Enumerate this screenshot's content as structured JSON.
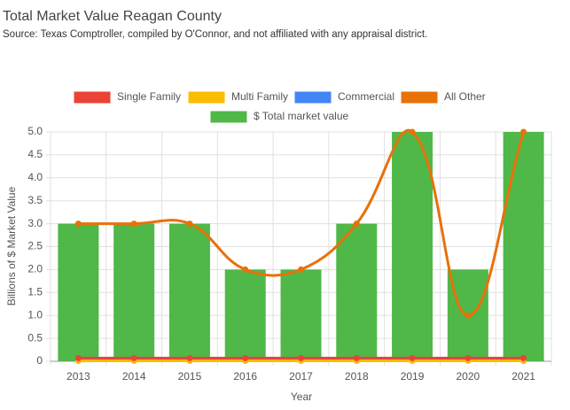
{
  "chart_data": {
    "type": "bar",
    "title": "Total Market Value Reagan County",
    "subtitle": "Source: Texas Comptroller, compiled by O'Connor, and not affiliated with any appraisal district.",
    "x_label": "Year",
    "y_label": "Billions of $ Market Value",
    "categories": [
      "2013",
      "2014",
      "2015",
      "2016",
      "2017",
      "2018",
      "2019",
      "2020",
      "2021"
    ],
    "series": [
      {
        "name": "Single Family",
        "color": "#ea4335",
        "type": "line",
        "values": [
          0.07,
          0.07,
          0.07,
          0.07,
          0.07,
          0.07,
          0.07,
          0.07,
          0.07
        ]
      },
      {
        "name": "Multi Family",
        "color": "#fbbc04",
        "type": "line",
        "values": [
          0.01,
          0.01,
          0.01,
          0.01,
          0.01,
          0.01,
          0.01,
          0.01,
          0.01
        ]
      },
      {
        "name": "Commercial",
        "color": "#4285f4",
        "type": "line",
        "values": [
          0.03,
          0.03,
          0.03,
          0.03,
          0.03,
          0.03,
          0.03,
          0.03,
          0.03
        ]
      },
      {
        "name": "All Other",
        "color": "#e8710a",
        "type": "line",
        "values": [
          3,
          3,
          3,
          2,
          2,
          3,
          5,
          1,
          5
        ]
      },
      {
        "name": "$ Total market value",
        "color": "#50b848",
        "type": "bar",
        "values": [
          3,
          3,
          3,
          2,
          2,
          3,
          5,
          2,
          5
        ]
      }
    ],
    "ylim": [
      0,
      5
    ],
    "yticks": [
      0,
      0.5,
      {
        "value": 1,
        "label": "1.0"
      },
      1.5,
      {
        "value": 2,
        "label": "2.0"
      },
      2.5,
      {
        "value": 3,
        "label": "3.0"
      },
      3.5,
      {
        "value": 4,
        "label": "4.0"
      },
      4.5,
      {
        "value": 5,
        "label": "5.0"
      }
    ],
    "grid": true,
    "legend": "top"
  }
}
